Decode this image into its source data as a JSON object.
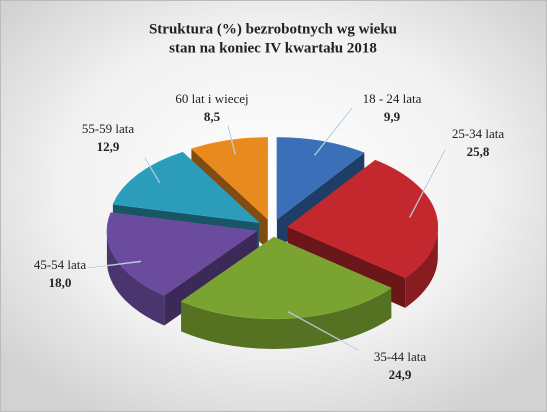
{
  "chart_data": {
    "type": "pie3d",
    "title": "Struktura (%) bezrobotnych wg wieku",
    "subtitle": "stan na koniec IV kwartału 2018",
    "categories": [
      "18 - 24 lata",
      "25-34 lata",
      "35-44 lata",
      "45-54 lata",
      "55-59 lata",
      "60 lat i wiecej"
    ],
    "values": [
      9.9,
      25.8,
      24.9,
      18.0,
      12.9,
      8.5
    ],
    "value_labels": [
      "9,9",
      "25,8",
      "24,9",
      "18,0",
      "12,9",
      "8,5"
    ],
    "colors": [
      "#3b70b8",
      "#c3282e",
      "#7aa332",
      "#6b4b9e",
      "#2b9cba",
      "#e98a1e"
    ]
  }
}
